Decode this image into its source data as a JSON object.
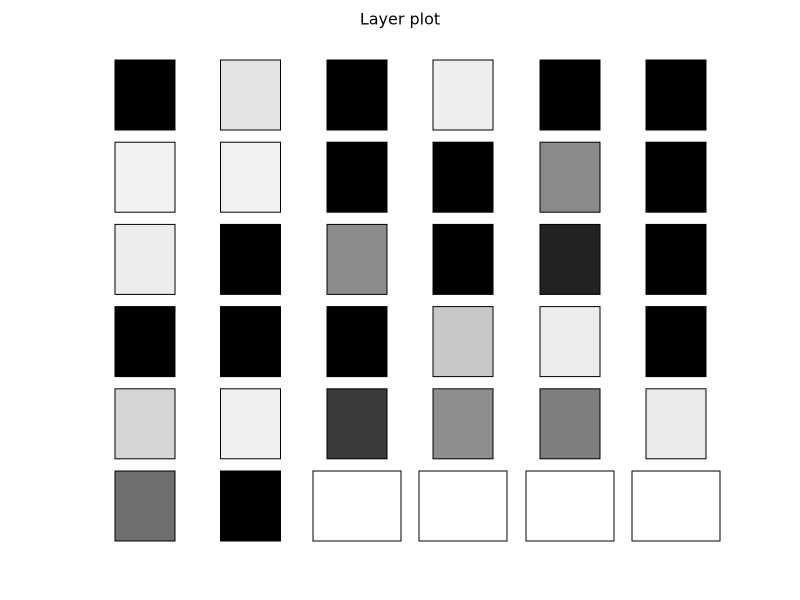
{
  "title": "Layer plot",
  "panels": [
    {
      "color": "#000000"
    },
    {
      "color": "#e4e4e4"
    },
    {
      "color": "#000000"
    },
    {
      "color": "#eeeeee"
    },
    {
      "color": "#000000"
    },
    {
      "color": "#000000"
    },
    {
      "color": "#f2f2f2"
    },
    {
      "color": "#f1f1f1"
    },
    {
      "color": "#000000"
    },
    {
      "color": "#000000"
    },
    {
      "color": "#8a8a8a"
    },
    {
      "color": "#000000"
    },
    {
      "color": "#ececec"
    },
    {
      "color": "#000000"
    },
    {
      "color": "#8c8c8c"
    },
    {
      "color": "#000000"
    },
    {
      "color": "#222222"
    },
    {
      "color": "#000000"
    },
    {
      "color": "#000000"
    },
    {
      "color": "#000000"
    },
    {
      "color": "#000000"
    },
    {
      "color": "#c8c8c8"
    },
    {
      "color": "#ececec"
    },
    {
      "color": "#000000"
    },
    {
      "color": "#d6d6d6"
    },
    {
      "color": "#f0f0f0"
    },
    {
      "color": "#3a3a3a"
    },
    {
      "color": "#8e8e8e"
    },
    {
      "color": "#7e7e7e"
    },
    {
      "color": "#ebebeb"
    },
    {
      "color": "#6e6e6e"
    },
    {
      "color": "#000000"
    },
    {
      "color": null
    },
    {
      "color": null
    },
    {
      "color": null
    },
    {
      "color": null
    }
  ]
}
